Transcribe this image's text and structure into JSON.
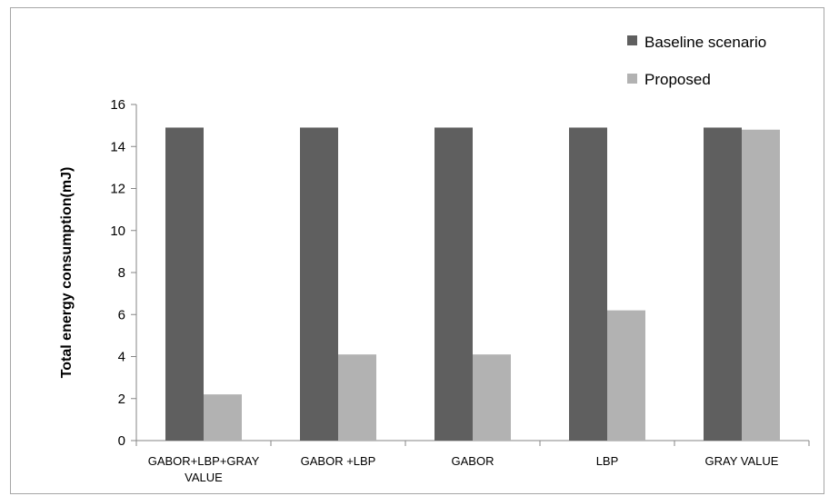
{
  "chart_data": {
    "type": "bar",
    "title": "",
    "xlabel": "",
    "ylabel": "Total energy consumption(mJ)",
    "ylim": [
      0,
      16
    ],
    "yticks": [
      "0",
      "2",
      "4",
      "6",
      "8",
      "10",
      "12",
      "14",
      "16"
    ],
    "grid": false,
    "legend_position": "top-right",
    "categories": [
      [
        "GABOR+LBP+GRAY",
        "VALUE"
      ],
      [
        "GABOR +LBP"
      ],
      [
        "GABOR"
      ],
      [
        "LBP"
      ],
      [
        "GRAY VALUE"
      ]
    ],
    "series": [
      {
        "name": "Baseline scenario",
        "color": "#5f5f5f",
        "values": [
          14.9,
          14.9,
          14.9,
          14.9,
          14.9
        ]
      },
      {
        "name": "Proposed",
        "color": "#b2b2b2",
        "values": [
          2.2,
          4.1,
          4.1,
          6.2,
          14.8
        ]
      }
    ]
  }
}
